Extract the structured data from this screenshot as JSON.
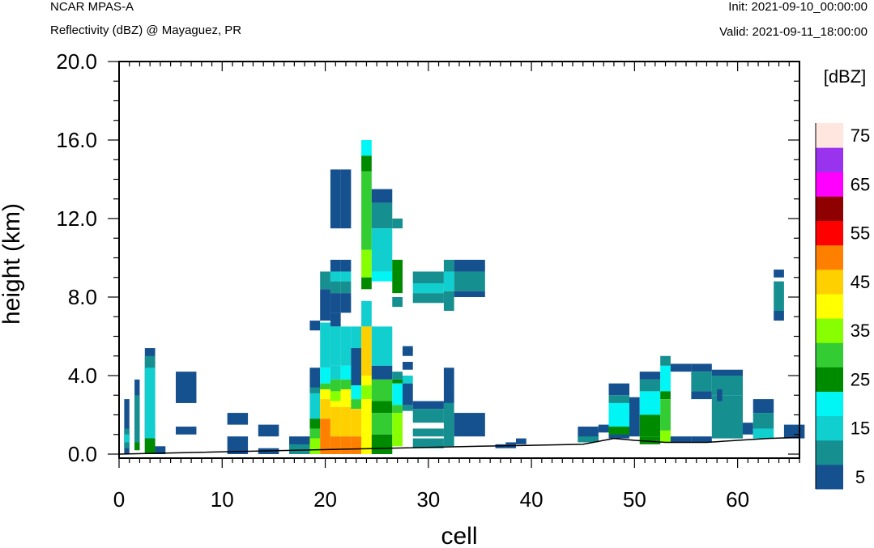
{
  "header": {
    "model": "NCAR MPAS-A",
    "field": "Reflectivity (dBZ) @ Mayaguez, PR",
    "init": "Init: 2021-09-10_00:00:00",
    "valid": "Valid: 2021-09-11_18:00:00"
  },
  "chart_data": {
    "type": "heatmap",
    "xlabel": "cell",
    "ylabel": "height (km)",
    "xlim": [
      0,
      66
    ],
    "ylim": [
      0,
      20
    ],
    "x_ticks": [
      0,
      10,
      20,
      30,
      40,
      50,
      60
    ],
    "x_tick_labels": [
      "0",
      "10",
      "20",
      "30",
      "40",
      "50",
      "60"
    ],
    "y_ticks": [
      0,
      4,
      8,
      12,
      16,
      20
    ],
    "y_tick_labels": [
      "0.0",
      "4.0",
      "8.0",
      "12.0",
      "16.0",
      "20.0"
    ],
    "colorbar": {
      "unit": "[dBZ]",
      "bins": [
        {
          "value": 5,
          "color": "#15508f"
        },
        {
          "value": 10,
          "color": "#158f8f"
        },
        {
          "value": 15,
          "color": "#12cfcf"
        },
        {
          "value": 20,
          "color": "#00f5f5"
        },
        {
          "value": 25,
          "color": "#008a00"
        },
        {
          "value": 30,
          "color": "#33cc33"
        },
        {
          "value": 35,
          "color": "#88ff00"
        },
        {
          "value": 40,
          "color": "#ffff00"
        },
        {
          "value": 45,
          "color": "#ffd000"
        },
        {
          "value": 50,
          "color": "#ff8000"
        },
        {
          "value": 55,
          "color": "#ff0000"
        },
        {
          "value": 60,
          "color": "#8f0000"
        },
        {
          "value": 65,
          "color": "#ff00ff"
        },
        {
          "value": 70,
          "color": "#9933ee"
        },
        {
          "value": 75,
          "color": "#ffe6df"
        }
      ],
      "labels": [
        "5",
        "15",
        "25",
        "35",
        "45",
        "55",
        "65",
        "75"
      ]
    },
    "terrain": [
      [
        0,
        0
      ],
      [
        35,
        0.4
      ],
      [
        40,
        0.45
      ],
      [
        45,
        0.5
      ],
      [
        48,
        0.8
      ],
      [
        50,
        0.7
      ],
      [
        53,
        0.6
      ],
      [
        57,
        0.6
      ],
      [
        60,
        0.7
      ],
      [
        63,
        0.8
      ],
      [
        66,
        0.85
      ]
    ],
    "cells": [
      [
        0.5,
        1,
        0,
        2.8,
        5
      ],
      [
        0.5,
        1,
        0.3,
        1.3,
        10
      ],
      [
        0.5,
        1,
        0.6,
        1,
        15
      ],
      [
        1.5,
        2,
        0.2,
        3.8,
        5
      ],
      [
        1.5,
        2,
        0.5,
        3,
        10
      ],
      [
        1.5,
        2,
        0.2,
        0.6,
        25
      ],
      [
        2.5,
        3.5,
        0,
        5.4,
        5
      ],
      [
        2.5,
        3.5,
        0.8,
        5.0,
        10
      ],
      [
        2.5,
        3.5,
        1.3,
        4.4,
        15
      ],
      [
        2.5,
        3.5,
        0.8,
        1.6,
        15
      ],
      [
        2.5,
        3.5,
        0,
        0.8,
        25
      ],
      [
        3.5,
        4.5,
        0,
        0.4,
        5
      ],
      [
        5.5,
        7.5,
        2.6,
        4.2,
        5
      ],
      [
        5.5,
        7.5,
        1.0,
        1.4,
        5
      ],
      [
        10.5,
        12.5,
        1.5,
        2.1,
        5
      ],
      [
        10.5,
        12.5,
        0,
        0.9,
        5
      ],
      [
        13.5,
        15.5,
        0.9,
        1.5,
        5
      ],
      [
        13.5,
        15.5,
        0,
        0.3,
        5
      ],
      [
        16.5,
        18.5,
        0.4,
        0.9,
        5
      ],
      [
        16.5,
        18.5,
        0,
        0.5,
        10
      ],
      [
        18.5,
        19.5,
        6.3,
        6.8,
        5
      ],
      [
        18.5,
        19.5,
        3.1,
        4.4,
        5
      ],
      [
        18.5,
        19.5,
        3.1,
        3.4,
        10
      ],
      [
        18.5,
        19.5,
        1.4,
        3.1,
        15
      ],
      [
        18.5,
        19.5,
        1.3,
        1.8,
        25
      ],
      [
        18.5,
        19.5,
        0.8,
        1.3,
        30
      ],
      [
        18.5,
        19.5,
        0,
        0.8,
        35
      ],
      [
        19.5,
        20.5,
        8.4,
        9.3,
        10
      ],
      [
        19.5,
        20.5,
        6.8,
        8.4,
        5
      ],
      [
        19.5,
        20.5,
        4.4,
        6.7,
        15
      ],
      [
        19.5,
        20.5,
        3.6,
        4.4,
        20
      ],
      [
        19.5,
        20.5,
        3.3,
        3.6,
        30
      ],
      [
        19.5,
        20.5,
        2.8,
        3.3,
        40
      ],
      [
        19.5,
        20.5,
        1.8,
        2.8,
        45
      ],
      [
        19.5,
        20.5,
        0,
        1.8,
        50
      ],
      [
        20.5,
        21.5,
        11.5,
        14.5,
        5
      ],
      [
        20.5,
        21.5,
        9.3,
        9.9,
        5
      ],
      [
        20.5,
        21.5,
        8.8,
        9.3,
        15
      ],
      [
        20.5,
        21.5,
        8.2,
        8.8,
        10
      ],
      [
        20.5,
        21.5,
        7.2,
        8.2,
        5
      ],
      [
        20.5,
        21.5,
        6.5,
        7.2,
        5
      ],
      [
        20.5,
        21.5,
        4.5,
        6.5,
        15
      ],
      [
        20.5,
        21.5,
        3.8,
        4.5,
        15
      ],
      [
        20.5,
        21.5,
        3.2,
        3.8,
        30
      ],
      [
        20.5,
        21.5,
        2.7,
        3.2,
        35
      ],
      [
        20.5,
        21.5,
        2.4,
        2.7,
        40
      ],
      [
        20.5,
        21.5,
        0.9,
        2.4,
        45
      ],
      [
        20.5,
        21.5,
        0,
        0.9,
        50
      ],
      [
        21.5,
        22.5,
        11.5,
        14.5,
        5
      ],
      [
        21.5,
        22.5,
        9.3,
        9.9,
        5
      ],
      [
        21.5,
        22.5,
        8.8,
        9.3,
        15
      ],
      [
        21.5,
        22.5,
        8.2,
        8.8,
        10
      ],
      [
        21.5,
        22.5,
        7.2,
        8.2,
        5
      ],
      [
        21.5,
        22.5,
        4.5,
        6.5,
        15
      ],
      [
        21.5,
        22.5,
        3.8,
        4.5,
        20
      ],
      [
        21.5,
        22.5,
        3.3,
        3.8,
        30
      ],
      [
        21.5,
        22.5,
        2.4,
        3.3,
        40
      ],
      [
        21.5,
        22.5,
        0.9,
        2.4,
        45
      ],
      [
        21.5,
        22.5,
        0,
        0.9,
        50
      ],
      [
        22.5,
        23.5,
        5.4,
        6.5,
        15
      ],
      [
        22.5,
        23.5,
        3.5,
        5.4,
        5
      ],
      [
        22.5,
        23.5,
        2.8,
        3.5,
        20
      ],
      [
        22.5,
        23.5,
        2.3,
        2.8,
        30
      ],
      [
        22.5,
        23.5,
        0.9,
        2.3,
        45
      ],
      [
        22.5,
        23.5,
        0,
        0.9,
        50
      ],
      [
        23.5,
        24.5,
        15.2,
        16.0,
        20
      ],
      [
        23.5,
        24.5,
        14.4,
        15.2,
        25
      ],
      [
        23.5,
        24.5,
        10.4,
        14.4,
        30
      ],
      [
        23.5,
        24.5,
        9.0,
        10.4,
        35
      ],
      [
        23.5,
        24.5,
        8.4,
        9.0,
        25
      ],
      [
        23.5,
        24.5,
        6.5,
        7.8,
        15
      ],
      [
        23.5,
        24.5,
        4.0,
        6.5,
        45
      ],
      [
        23.5,
        24.5,
        3.5,
        4.0,
        40
      ],
      [
        23.5,
        24.5,
        2.8,
        3.5,
        35
      ],
      [
        23.5,
        24.5,
        2.2,
        2.8,
        40
      ],
      [
        23.5,
        24.5,
        1.2,
        2.2,
        40
      ],
      [
        23.5,
        24.5,
        0,
        1.2,
        40
      ],
      [
        24.5,
        26.5,
        12.8,
        13.5,
        5
      ],
      [
        24.5,
        26.5,
        11.5,
        12.8,
        10
      ],
      [
        24.5,
        26.5,
        9.3,
        11.5,
        15
      ],
      [
        24.5,
        26.5,
        8.8,
        9.3,
        20
      ],
      [
        24.5,
        26.5,
        4.5,
        6.5,
        15
      ],
      [
        24.5,
        26.5,
        3.8,
        4.5,
        5
      ],
      [
        24.5,
        26.5,
        2.7,
        3.8,
        30
      ],
      [
        24.5,
        26.5,
        2.1,
        2.7,
        25
      ],
      [
        24.5,
        26.5,
        1.0,
        2.1,
        30
      ],
      [
        24.5,
        26.5,
        0,
        1.0,
        25
      ],
      [
        26.5,
        27.5,
        11.5,
        12.0,
        10
      ],
      [
        26.5,
        27.5,
        9.3,
        9.9,
        25
      ],
      [
        26.5,
        27.5,
        8.2,
        9.3,
        25
      ],
      [
        26.5,
        27.5,
        7.5,
        8.0,
        10
      ],
      [
        26.5,
        27.5,
        3.8,
        4.2,
        10
      ],
      [
        26.5,
        27.5,
        3.6,
        3.8,
        25
      ],
      [
        26.5,
        27.5,
        2.5,
        3.6,
        20
      ],
      [
        26.5,
        27.5,
        2.1,
        2.5,
        30
      ],
      [
        26.5,
        27.5,
        0.4,
        2.1,
        35
      ],
      [
        27.5,
        28.5,
        5.0,
        5.5,
        5
      ],
      [
        27.5,
        28.5,
        4.3,
        4.7,
        5
      ],
      [
        27.5,
        28.5,
        3.6,
        4.0,
        15
      ],
      [
        27.5,
        28.5,
        2.5,
        3.6,
        5
      ],
      [
        27.5,
        28.5,
        2.2,
        2.5,
        10
      ],
      [
        28.5,
        31.5,
        8.7,
        9.3,
        10
      ],
      [
        28.5,
        31.5,
        8.2,
        8.7,
        15
      ],
      [
        28.5,
        31.5,
        7.7,
        8.2,
        10
      ],
      [
        28.5,
        31.5,
        2.3,
        2.7,
        5
      ],
      [
        28.5,
        31.5,
        1.6,
        2.3,
        10
      ],
      [
        28.5,
        31.5,
        0.9,
        1.3,
        10
      ],
      [
        28.5,
        31.5,
        0.3,
        0.8,
        10
      ],
      [
        31.5,
        32.5,
        9.3,
        9.9,
        10
      ],
      [
        31.5,
        32.5,
        8.3,
        9.3,
        15
      ],
      [
        31.5,
        32.5,
        7.3,
        8.3,
        10
      ],
      [
        31.5,
        32.5,
        3.3,
        4.4,
        5
      ],
      [
        31.5,
        32.5,
        2.6,
        3.3,
        5
      ],
      [
        31.5,
        32.5,
        0.4,
        2.6,
        10
      ],
      [
        32.5,
        35.5,
        9.3,
        9.9,
        5
      ],
      [
        32.5,
        35.5,
        8.3,
        9.3,
        10
      ],
      [
        32.5,
        35.5,
        8.0,
        8.3,
        5
      ],
      [
        32.5,
        35.5,
        0.9,
        2.1,
        5
      ],
      [
        36.5,
        37.5,
        0.3,
        0.5,
        5
      ],
      [
        37.5,
        38.5,
        0.3,
        0.6,
        5
      ],
      [
        38.5,
        39.5,
        0.5,
        0.8,
        5
      ],
      [
        44.5,
        46.5,
        0.7,
        1.4,
        5
      ],
      [
        44.5,
        46.5,
        0.6,
        0.9,
        10
      ],
      [
        46.5,
        47.5,
        1.1,
        1.5,
        5
      ],
      [
        47.5,
        49.5,
        3.0,
        3.6,
        5
      ],
      [
        47.5,
        49.5,
        2.6,
        3.0,
        10
      ],
      [
        47.5,
        49.5,
        1.4,
        2.6,
        20
      ],
      [
        47.5,
        49.5,
        0.9,
        1.4,
        25
      ],
      [
        47.5,
        49.5,
        0.8,
        1.0,
        5
      ],
      [
        49.5,
        50.5,
        0.9,
        2.9,
        5
      ],
      [
        50.5,
        52.5,
        3.8,
        4.2,
        5
      ],
      [
        50.5,
        52.5,
        3.2,
        3.8,
        10
      ],
      [
        50.5,
        52.5,
        2.0,
        3.2,
        20
      ],
      [
        50.5,
        52.5,
        0.9,
        2.0,
        25
      ],
      [
        50.5,
        52.5,
        0.5,
        0.9,
        25
      ],
      [
        52.5,
        53.5,
        4.5,
        5.0,
        10
      ],
      [
        52.5,
        53.5,
        3.2,
        4.5,
        20
      ],
      [
        52.5,
        53.5,
        2.8,
        3.2,
        25
      ],
      [
        52.5,
        53.5,
        1.2,
        2.8,
        30
      ],
      [
        52.5,
        53.5,
        0.6,
        1.2,
        35
      ],
      [
        53.5,
        55.5,
        4.2,
        4.6,
        5
      ],
      [
        53.5,
        55.5,
        0.6,
        0.9,
        5
      ],
      [
        55.5,
        57.5,
        4.2,
        4.6,
        5
      ],
      [
        55.5,
        57.5,
        3.2,
        4.2,
        10
      ],
      [
        55.5,
        57.5,
        2.8,
        3.2,
        5
      ],
      [
        55.5,
        57.5,
        0.6,
        0.9,
        5
      ],
      [
        57.5,
        60.5,
        4.0,
        4.3,
        5
      ],
      [
        57.5,
        60.5,
        3.0,
        4.0,
        10
      ],
      [
        57.5,
        60.5,
        0.8,
        3.0,
        10
      ],
      [
        58,
        58.5,
        2.7,
        3.3,
        5
      ],
      [
        60.5,
        61.5,
        1.0,
        1.6,
        5
      ],
      [
        61.5,
        63.5,
        2.1,
        2.8,
        5
      ],
      [
        61.5,
        63.5,
        1.3,
        2.1,
        10
      ],
      [
        61.5,
        63.5,
        0.8,
        1.3,
        15
      ],
      [
        63.5,
        64.5,
        9.0,
        9.4,
        5
      ],
      [
        63.5,
        64.5,
        7.3,
        8.8,
        10
      ],
      [
        63.5,
        64.5,
        6.8,
        7.3,
        5
      ],
      [
        64.5,
        66.5,
        0.8,
        1.5,
        5
      ]
    ]
  }
}
